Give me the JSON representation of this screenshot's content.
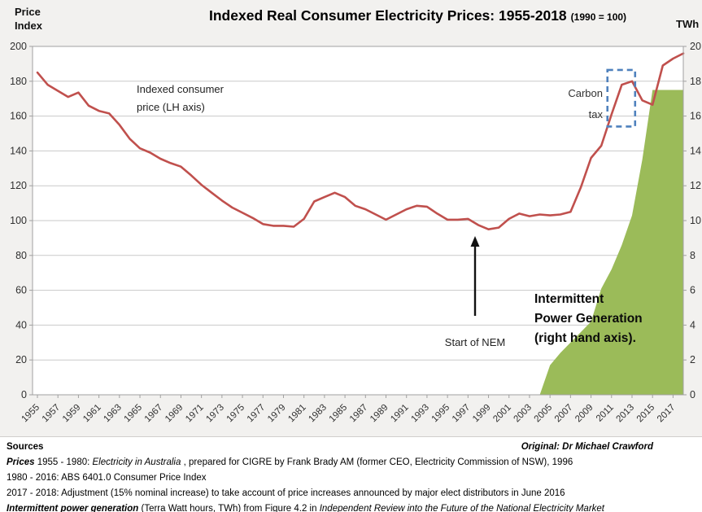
{
  "header": {
    "left_axis_title_line1": "Price",
    "left_axis_title_line2": "Index",
    "title": "Indexed Real Consumer Electricity Prices: 1955-2018",
    "title_suffix": "(1990 = 100)",
    "right_axis_title": "TWh"
  },
  "style": {
    "line_color": "#C0504D",
    "area_color": "#9BBB59",
    "box_color": "#4F81BD",
    "grid_color": "#C9C9C9",
    "axis_color": "#A0A0A0",
    "tick_label_color": "#303030",
    "figure_bg": "#F2F1EF",
    "plot_bg": "#FFFFFF"
  },
  "annotations": {
    "price_line_label": {
      "line1": "Indexed consumer",
      "line2": "price (LH axis)"
    },
    "carbon_tax": {
      "line1": "Carbon",
      "line2": "tax"
    },
    "start_of_nem": "Start of NEM",
    "generation_label": {
      "line1": "Intermittent",
      "line2": "Power Generation",
      "line3": "(right hand axis)."
    }
  },
  "chart_data": {
    "type": "line",
    "title": "Indexed Real Consumer Electricity Prices: 1955-2018 (1990 = 100)",
    "left_axis": {
      "label": "Price Index",
      "min": 0,
      "max": 200,
      "step": 20
    },
    "right_axis": {
      "label": "TWh",
      "min": 0,
      "max": 20,
      "step": 2
    },
    "grid": true,
    "years": [
      1955,
      1956,
      1957,
      1958,
      1959,
      1960,
      1961,
      1962,
      1963,
      1964,
      1965,
      1966,
      1967,
      1968,
      1969,
      1970,
      1971,
      1972,
      1973,
      1974,
      1975,
      1976,
      1977,
      1978,
      1979,
      1980,
      1981,
      1982,
      1983,
      1984,
      1985,
      1986,
      1987,
      1988,
      1989,
      1990,
      1991,
      1992,
      1993,
      1994,
      1995,
      1996,
      1997,
      1998,
      1999,
      2000,
      2001,
      2002,
      2003,
      2004,
      2005,
      2006,
      2007,
      2008,
      2009,
      2010,
      2011,
      2012,
      2013,
      2014,
      2015,
      2016,
      2017,
      2018
    ],
    "x_tick_labels": [
      "1955",
      "1957",
      "1959",
      "1961",
      "1963",
      "1965",
      "1967",
      "1969",
      "1971",
      "1973",
      "1975",
      "1977",
      "1979",
      "1981",
      "1983",
      "1985",
      "1987",
      "1989",
      "1991",
      "1993",
      "1995",
      "1997",
      "1999",
      "2001",
      "2003",
      "2005",
      "2007",
      "2009",
      "2011",
      "2013",
      "2015",
      "2017"
    ],
    "series": [
      {
        "name": "Indexed consumer price (LH axis)",
        "type": "line",
        "axis": "left",
        "color": "#C0504D",
        "values": [
          185,
          178,
          174.5,
          171,
          173.5,
          166,
          163,
          161.5,
          155,
          147,
          141.5,
          139,
          135.5,
          133,
          131,
          126,
          120.5,
          116,
          111.5,
          107.5,
          104.5,
          101.5,
          98,
          97,
          97,
          96.5,
          101,
          111,
          113.5,
          116,
          113.5,
          108.5,
          106.5,
          103.5,
          100.5,
          103.5,
          106.5,
          108.5,
          108,
          104,
          100.5,
          100.5,
          101,
          97.5,
          95,
          96,
          101,
          104,
          102.5,
          103.5,
          103,
          103.5,
          105,
          119,
          136,
          143,
          161,
          178,
          180,
          169,
          166.5,
          189,
          193,
          196
        ]
      },
      {
        "name": "Intermittent Power Generation (right hand axis)",
        "type": "area",
        "axis": "right",
        "color": "#9BBB59",
        "values": [
          null,
          null,
          null,
          null,
          null,
          null,
          null,
          null,
          null,
          null,
          null,
          null,
          null,
          null,
          null,
          null,
          null,
          null,
          null,
          null,
          null,
          null,
          null,
          null,
          null,
          null,
          null,
          null,
          null,
          null,
          null,
          null,
          null,
          null,
          null,
          null,
          null,
          null,
          null,
          null,
          null,
          null,
          null,
          null,
          null,
          null,
          null,
          null,
          null,
          0,
          1.7,
          2.4,
          3.0,
          3.6,
          4.2,
          6.1,
          7.2,
          8.6,
          10.3,
          13.5,
          17.5,
          17.5,
          17.5,
          17.5
        ]
      }
    ],
    "highlight_box": {
      "label": "Carbon tax",
      "x_from": 2010.6,
      "x_to": 2013.3,
      "value_from": 154,
      "value_to": 186.5
    }
  },
  "footer": {
    "lines": [
      {
        "segments": [
          {
            "t": "Sources",
            "b": true
          }
        ],
        "right_segments": [
          {
            "t": "Original:  Dr Michael Crawford",
            "b": true,
            "i": true
          }
        ]
      },
      {
        "segments": [
          {
            "t": "Prices",
            "b": true,
            "i": true
          },
          {
            "t": "  1955 - 1980: "
          },
          {
            "t": "Electricity in Australia",
            "i": true
          },
          {
            "t": " , prepared for CIGRE by Frank Brady AM (former CEO, Electricity Commission of NSW), 1996"
          }
        ]
      },
      {
        "segments": [
          {
            "t": "1980 - 2016: ABS 6401.0 Consumer Price Index"
          }
        ]
      },
      {
        "segments": [
          {
            "t": "2017 - 2018: Adjustment (15% nominal increase) to take account of price increases announced by major elect distributors in June 2016"
          }
        ]
      },
      {
        "segments": [
          {
            "t": "Intermittent power generation",
            "b": true,
            "i": true
          },
          {
            "t": "  (Terra Watt hours, TWh) from Figure 4.2 in "
          },
          {
            "t": "Independent Review into the Future of the National Electricity Market",
            "i": true
          }
        ]
      }
    ]
  }
}
